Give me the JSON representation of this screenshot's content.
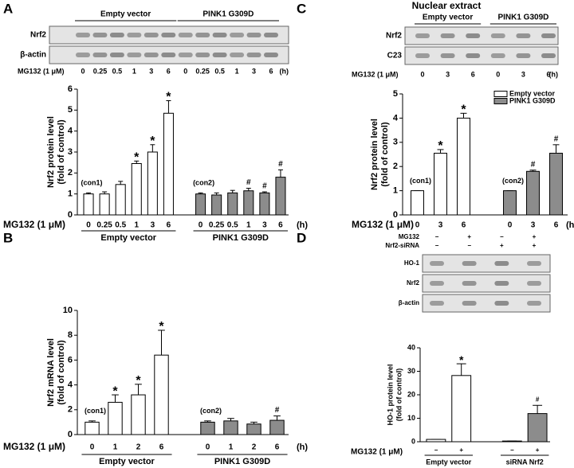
{
  "chart_data": [
    {
      "panel": "A",
      "type": "bar",
      "blot": {
        "rows": [
          "Nrf2",
          "β-actin"
        ]
      },
      "ylabel": [
        "Nrf2 protein level",
        "(fold of control)"
      ],
      "xlabel": "MG132 (1 μM)",
      "xunit": "(h)",
      "categories": [
        "0",
        "0.25",
        "0.5",
        "1",
        "3",
        "6"
      ],
      "ylim": [
        0,
        6
      ],
      "yticks": [
        0,
        1,
        2,
        3,
        4,
        5,
        6
      ],
      "series": [
        {
          "name": "Empty vector",
          "color": "#ffffff",
          "values": [
            1.0,
            1.0,
            1.45,
            2.45,
            3.0,
            4.85
          ],
          "errors": [
            0.05,
            0.1,
            0.15,
            0.12,
            0.35,
            0.6
          ],
          "significance": [
            null,
            null,
            null,
            "*",
            "*",
            "*"
          ],
          "control_label": "(con1)"
        },
        {
          "name": "PINK1 G309D",
          "color": "#8c8c8c",
          "values": [
            1.0,
            0.95,
            1.05,
            1.15,
            1.05,
            1.8
          ],
          "errors": [
            0.05,
            0.1,
            0.12,
            0.12,
            0.05,
            0.35
          ],
          "significance": [
            null,
            null,
            null,
            "#",
            "#",
            "#"
          ],
          "control_label": "(con2)"
        }
      ]
    },
    {
      "panel": "B",
      "type": "bar",
      "ylabel": [
        "Nrf2 mRNA level",
        "(fold of control)"
      ],
      "xlabel": "MG132 (1 μM)",
      "xunit": "(h)",
      "categories": [
        "0",
        "1",
        "2",
        "6"
      ],
      "ylim": [
        0,
        10
      ],
      "yticks": [
        0,
        2,
        4,
        6,
        8,
        10
      ],
      "series": [
        {
          "name": "Empty vector",
          "color": "#ffffff",
          "values": [
            1.0,
            2.6,
            3.2,
            6.4
          ],
          "errors": [
            0.1,
            0.6,
            0.85,
            2.0
          ],
          "significance": [
            null,
            "*",
            "*",
            "*"
          ],
          "control_label": "(con1)"
        },
        {
          "name": "PINK1 G309D",
          "color": "#8c8c8c",
          "values": [
            1.0,
            1.1,
            0.85,
            1.15
          ],
          "errors": [
            0.1,
            0.2,
            0.15,
            0.35
          ],
          "significance": [
            null,
            null,
            null,
            "#"
          ],
          "control_label": "(con2)"
        }
      ]
    },
    {
      "panel": "C",
      "type": "bar",
      "title": "Nuclear extract",
      "legend": "top-right",
      "blot": {
        "rows": [
          "Nrf2",
          "C23"
        ]
      },
      "ylabel": [
        "Nrf2 protein level",
        "(fold of control)"
      ],
      "xlabel": "MG132 (1 μM)",
      "xunit": "(h)",
      "categories": [
        "0",
        "3",
        "6"
      ],
      "ylim": [
        0,
        5
      ],
      "yticks": [
        0,
        1,
        2,
        3,
        4,
        5
      ],
      "series": [
        {
          "name": "Empty vector",
          "color": "#ffffff",
          "values": [
            1.0,
            2.55,
            4.0
          ],
          "errors": [
            0,
            0.15,
            0.2
          ],
          "significance": [
            null,
            "*",
            "*"
          ],
          "control_label": "(con1)"
        },
        {
          "name": "PINK1 G309D",
          "color": "#8c8c8c",
          "values": [
            1.0,
            1.8,
            2.55
          ],
          "errors": [
            0,
            0.05,
            0.35
          ],
          "significance": [
            null,
            "#",
            "#"
          ],
          "control_label": "(con2)"
        }
      ]
    },
    {
      "panel": "D",
      "type": "bar",
      "blot": {
        "conditions": [
          {
            "name": "MG132",
            "values": [
              "−",
              "+",
              "−",
              "+"
            ]
          },
          {
            "name": "Nrf2-siRNA",
            "values": [
              "−",
              "−",
              "+",
              "+"
            ]
          }
        ],
        "rows": [
          "HO-1",
          "Nrf2",
          "β-actin"
        ]
      },
      "ylabel": [
        "HO-1 protein level",
        "(fold of control)"
      ],
      "xlabel": "MG132 (1 μM)",
      "categories": [
        "−",
        "+"
      ],
      "ylim": [
        0,
        40
      ],
      "yticks": [
        0,
        10,
        20,
        30,
        40
      ],
      "series": [
        {
          "name": "Empty vector",
          "color": "#ffffff",
          "values": [
            1.0,
            28.2
          ],
          "errors": [
            0,
            5.0
          ],
          "significance": [
            null,
            "*"
          ]
        },
        {
          "name": "siRNA Nrf2",
          "color": "#8c8c8c",
          "values": [
            0.3,
            12.0
          ],
          "errors": [
            0,
            3.5
          ],
          "significance": [
            null,
            "#"
          ]
        }
      ]
    }
  ]
}
